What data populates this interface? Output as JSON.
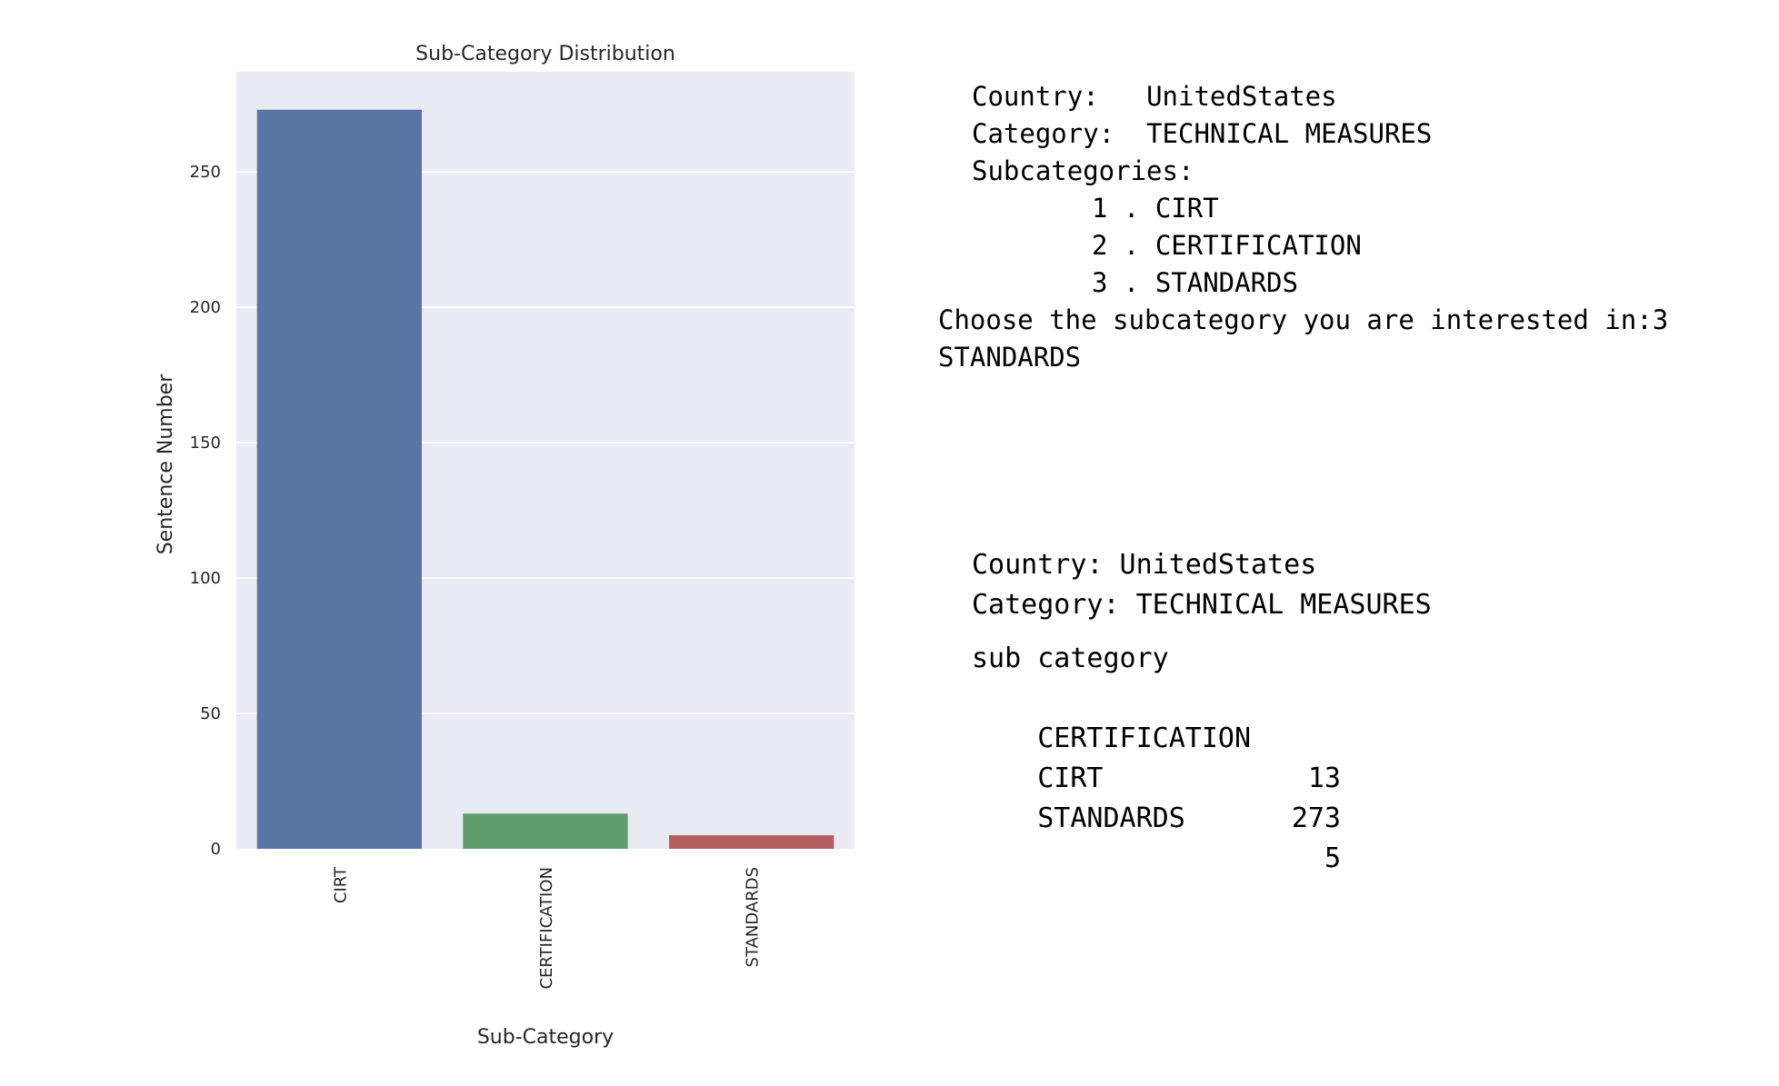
{
  "chart_data": {
    "type": "bar",
    "title": "Sub-Category Distribution",
    "xlabel": "Sub-Category",
    "ylabel": "Sentence Number",
    "categories": [
      "CIRT",
      "CERTIFICATION",
      "STANDARDS"
    ],
    "values": [
      273,
      13,
      5
    ],
    "ylim": [
      0,
      287
    ],
    "yticks": [
      0,
      50,
      100,
      150,
      200,
      250
    ],
    "grid": true,
    "legend": "none",
    "colors": [
      "#5975a4",
      "#5f9e6e",
      "#b55d60"
    ],
    "background": "#eaeaf2"
  },
  "console": {
    "country_label": "Country:",
    "country_value": "UnitedStates",
    "category_label": "Category:",
    "category_value": "TECHNICAL MEASURES",
    "subcategories_label": "Subcategories:",
    "options": [
      "1 . CIRT",
      "2 . CERTIFICATION",
      "3 . STANDARDS"
    ],
    "prompt": "Choose the subcategory you are interested in:",
    "answer": "3",
    "selected": "STANDARDS"
  },
  "result": {
    "country_line": "Country: UnitedStates",
    "category_line": "Category: TECHNICAL MEASURES",
    "table_header": "sub category",
    "rows": [
      {
        "name": "CERTIFICATION",
        "count": "13"
      },
      {
        "name": "CIRT",
        "count": "273"
      },
      {
        "name": "STANDARDS",
        "count": "5"
      }
    ]
  }
}
